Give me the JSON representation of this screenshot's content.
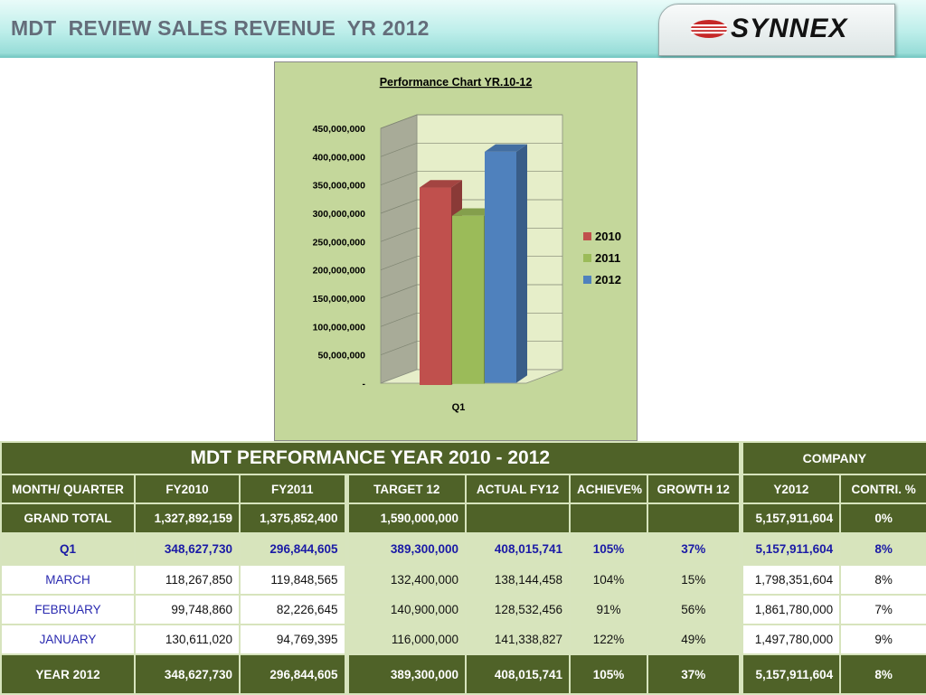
{
  "header": {
    "title": "MDT  REVIEW SALES REVENUE  YR 2012",
    "logo_text": "SYNNEX"
  },
  "colors": {
    "header_bg": "#bdeeea",
    "chart_bg": "#c4d79b",
    "table_dark": "#4f6228",
    "table_light": "#d7e4bc",
    "series_2010": "#c0504d",
    "series_2011": "#9bbb59",
    "series_2012": "#4f81bd"
  },
  "chart_data": {
    "type": "bar",
    "title": "Performance Chart YR.10-12",
    "categories": [
      "Q1"
    ],
    "series": [
      {
        "name": "2010",
        "values": [
          348627730
        ]
      },
      {
        "name": "2011",
        "values": [
          296844605
        ]
      },
      {
        "name": "2012",
        "values": [
          408015741
        ]
      }
    ],
    "ylim": [
      0,
      450000000
    ],
    "yticks": [
      "-",
      "50,000,000",
      "100,000,000",
      "150,000,000",
      "200,000,000",
      "250,000,000",
      "300,000,000",
      "350,000,000",
      "400,000,000",
      "450,000,000"
    ],
    "grid": true,
    "legend": "right",
    "style": "3d-clustered"
  },
  "table": {
    "title": "MDT PERFORMANCE YEAR 2010 - 2012",
    "company_label": "COMPANY",
    "headers": [
      "MONTH/ QUARTER",
      "FY2010",
      "FY2011",
      "TARGET 12",
      "ACTUAL FY12",
      "ACHIEVE%",
      "GROWTH 12",
      "Y2012",
      "CONTRI. %"
    ],
    "grand_total": [
      "GRAND TOTAL",
      "1,327,892,159",
      "1,375,852,400",
      "1,590,000,000",
      "",
      "",
      "",
      "5,157,911,604",
      "0%"
    ],
    "q1": [
      "Q1",
      "348,627,730",
      "296,844,605",
      "389,300,000",
      "408,015,741",
      "105%",
      "37%",
      "5,157,911,604",
      "8%"
    ],
    "months": [
      [
        "MARCH",
        "118,267,850",
        "119,848,565",
        "132,400,000",
        "138,144,458",
        "104%",
        "15%",
        "1,798,351,604",
        "8%"
      ],
      [
        "FEBRUARY",
        "99,748,860",
        "82,226,645",
        "140,900,000",
        "128,532,456",
        "91%",
        "56%",
        "1,861,780,000",
        "7%"
      ],
      [
        "JANUARY",
        "130,611,020",
        "94,769,395",
        "116,000,000",
        "141,338,827",
        "122%",
        "49%",
        "1,497,780,000",
        "9%"
      ]
    ],
    "year_total": [
      "YEAR 2012",
      "348,627,730",
      "296,844,605",
      "389,300,000",
      "408,015,741",
      "105%",
      "37%",
      "5,157,911,604",
      "8%"
    ]
  }
}
